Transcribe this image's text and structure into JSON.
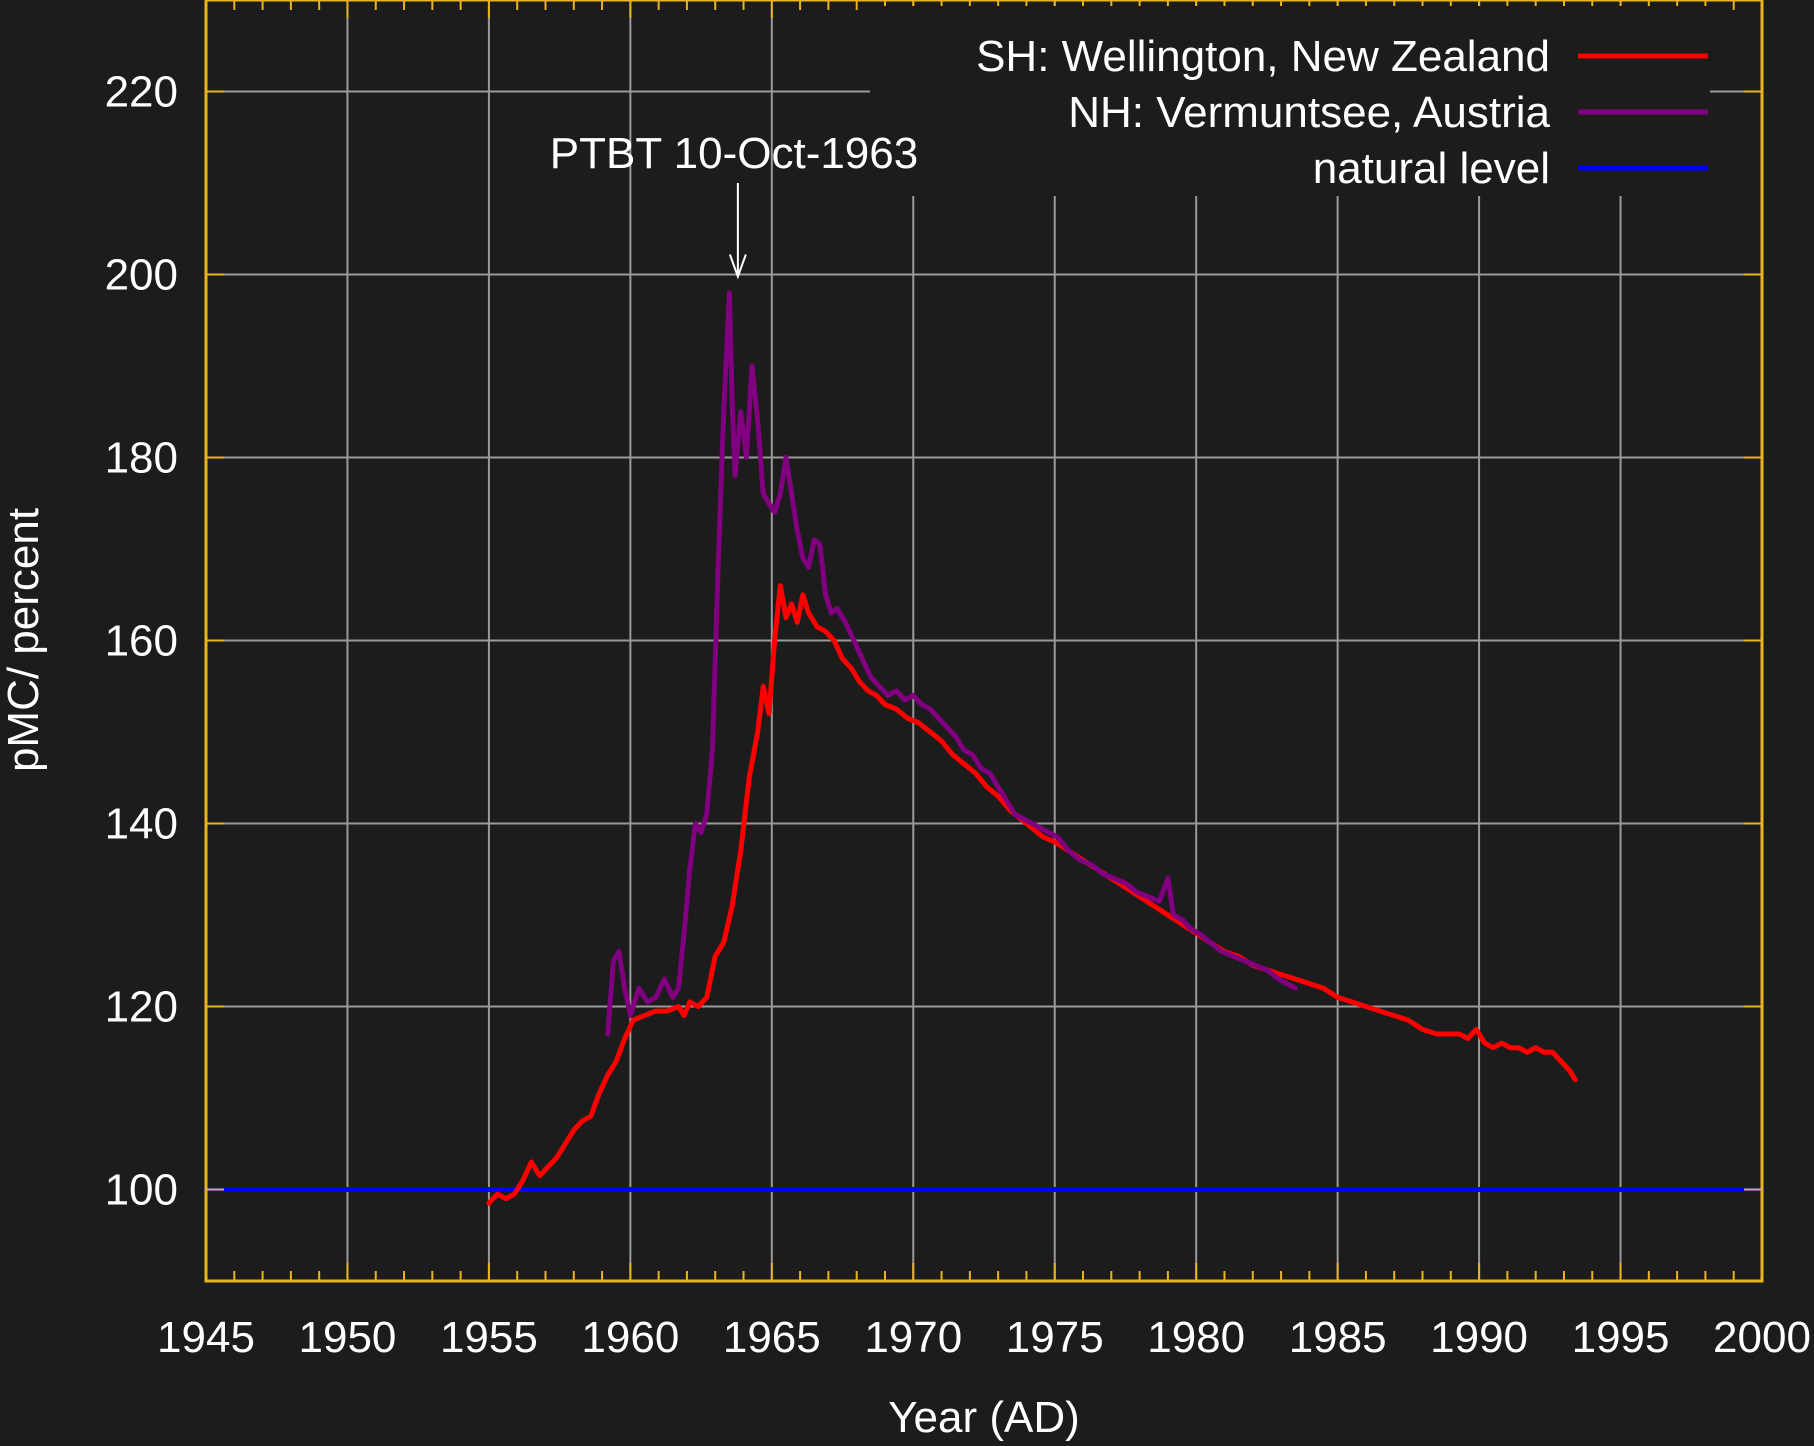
{
  "chart_data": {
    "type": "line",
    "xlabel": "Year (AD)",
    "ylabel": "pMC/ percent",
    "xlim": [
      1945,
      2000
    ],
    "ylim": [
      90,
      230
    ],
    "x_ticks": [
      1945,
      1950,
      1955,
      1960,
      1965,
      1970,
      1975,
      1980,
      1985,
      1990,
      1995,
      2000
    ],
    "y_ticks": [
      100,
      120,
      140,
      160,
      180,
      200,
      220
    ],
    "grid": true,
    "legend_position": "top-right",
    "annotation": {
      "text": "PTBT 10-Oct-1963",
      "x": 1963.8,
      "y": 200
    },
    "colors": {
      "background": "#1c1c1c",
      "frame": "#e8b421",
      "grid": "#9a9a9a",
      "text": "#ffffff"
    },
    "series": [
      {
        "name": "SH: Wellington, New Zealand",
        "color": "#ff0000",
        "x": [
          1955.0,
          1955.3,
          1955.6,
          1955.9,
          1956.2,
          1956.5,
          1956.8,
          1957.1,
          1957.4,
          1957.7,
          1958.0,
          1958.3,
          1958.6,
          1958.9,
          1959.2,
          1959.5,
          1959.8,
          1960.1,
          1960.5,
          1960.9,
          1961.3,
          1961.7,
          1961.9,
          1962.1,
          1962.4,
          1962.7,
          1963.0,
          1963.3,
          1963.6,
          1963.9,
          1964.2,
          1964.5,
          1964.7,
          1964.9,
          1965.1,
          1965.3,
          1965.5,
          1965.7,
          1965.9,
          1966.1,
          1966.3,
          1966.6,
          1966.9,
          1967.2,
          1967.5,
          1967.8,
          1968.1,
          1968.4,
          1968.7,
          1969.0,
          1969.4,
          1969.8,
          1970.2,
          1970.6,
          1971.0,
          1971.4,
          1971.8,
          1972.2,
          1972.6,
          1973.0,
          1973.4,
          1973.8,
          1974.2,
          1974.6,
          1975.0,
          1975.5,
          1976.0,
          1976.5,
          1977.0,
          1977.5,
          1978.0,
          1978.5,
          1979.0,
          1979.5,
          1980.0,
          1980.5,
          1981.0,
          1981.5,
          1982.0,
          1982.5,
          1983.0,
          1983.5,
          1984.0,
          1984.5,
          1985.0,
          1985.5,
          1986.0,
          1986.5,
          1987.0,
          1987.5,
          1988.0,
          1988.5,
          1989.0,
          1989.3,
          1989.6,
          1989.9,
          1990.2,
          1990.5,
          1990.8,
          1991.1,
          1991.4,
          1991.7,
          1992.0,
          1992.3,
          1992.6,
          1992.9,
          1993.2,
          1993.4
        ],
        "values": [
          98.5,
          99.5,
          99.0,
          99.5,
          101.0,
          103.0,
          101.5,
          102.5,
          103.5,
          105.0,
          106.5,
          107.5,
          108.0,
          110.5,
          112.5,
          114.0,
          116.5,
          118.5,
          119.0,
          119.5,
          119.5,
          120.0,
          119.0,
          120.5,
          120.0,
          121.0,
          125.5,
          127.0,
          131.0,
          137.0,
          145.0,
          150.0,
          155.0,
          152.0,
          160.0,
          166.0,
          162.5,
          164.0,
          162.0,
          165.0,
          163.0,
          161.5,
          161.0,
          160.0,
          158.0,
          157.0,
          155.5,
          154.5,
          154.0,
          153.0,
          152.5,
          151.5,
          151.0,
          150.0,
          149.0,
          147.5,
          146.5,
          145.5,
          144.0,
          143.0,
          141.5,
          140.5,
          139.5,
          138.5,
          138.0,
          137.0,
          136.0,
          135.0,
          134.0,
          133.0,
          132.0,
          131.0,
          130.0,
          129.0,
          128.0,
          127.0,
          126.0,
          125.5,
          124.5,
          124.0,
          123.5,
          123.0,
          122.5,
          122.0,
          121.0,
          120.5,
          120.0,
          119.5,
          119.0,
          118.5,
          117.5,
          117.0,
          117.0,
          117.0,
          116.5,
          117.5,
          116.0,
          115.5,
          116.0,
          115.5,
          115.5,
          115.0,
          115.5,
          115.0,
          115.0,
          114.0,
          113.0,
          112.0
        ]
      },
      {
        "name": "NH: Vermuntsee, Austria",
        "color": "#800080",
        "x": [
          1959.2,
          1959.4,
          1959.6,
          1959.8,
          1960.0,
          1960.3,
          1960.6,
          1960.9,
          1961.2,
          1961.5,
          1961.7,
          1961.9,
          1962.1,
          1962.3,
          1962.5,
          1962.7,
          1962.9,
          1963.1,
          1963.3,
          1963.5,
          1963.6,
          1963.7,
          1963.9,
          1964.1,
          1964.3,
          1964.5,
          1964.7,
          1964.9,
          1965.1,
          1965.3,
          1965.5,
          1965.7,
          1965.9,
          1966.1,
          1966.3,
          1966.5,
          1966.7,
          1966.9,
          1967.1,
          1967.3,
          1967.6,
          1967.9,
          1968.2,
          1968.5,
          1968.8,
          1969.1,
          1969.4,
          1969.7,
          1970.0,
          1970.3,
          1970.6,
          1970.9,
          1971.2,
          1971.5,
          1971.8,
          1972.1,
          1972.4,
          1972.7,
          1973.0,
          1973.3,
          1973.6,
          1973.9,
          1974.2,
          1974.5,
          1974.8,
          1975.1,
          1975.5,
          1975.9,
          1976.3,
          1976.7,
          1977.1,
          1977.5,
          1977.9,
          1978.3,
          1978.7,
          1979.0,
          1979.2,
          1979.5,
          1979.8,
          1980.1,
          1980.5,
          1980.9,
          1981.3,
          1981.7,
          1982.1,
          1982.5,
          1982.9,
          1983.2,
          1983.5
        ],
        "values": [
          117.0,
          125.0,
          126.0,
          122.0,
          119.0,
          122.0,
          120.5,
          121.0,
          123.0,
          121.0,
          122.0,
          128.0,
          135.0,
          140.0,
          139.0,
          141.0,
          148.0,
          168.0,
          185.0,
          198.0,
          186.0,
          178.0,
          185.0,
          180.0,
          190.0,
          184.0,
          176.0,
          175.0,
          174.0,
          176.0,
          180.0,
          176.0,
          172.0,
          169.0,
          168.0,
          171.0,
          170.5,
          165.0,
          163.0,
          163.5,
          162.0,
          160.0,
          158.0,
          156.0,
          155.0,
          154.0,
          154.5,
          153.5,
          154.0,
          153.0,
          152.5,
          151.5,
          150.5,
          149.5,
          148.0,
          147.5,
          146.0,
          145.5,
          144.0,
          142.5,
          141.0,
          140.5,
          140.0,
          139.5,
          139.0,
          138.5,
          137.0,
          136.0,
          135.5,
          134.5,
          134.0,
          133.5,
          132.5,
          132.0,
          131.5,
          134.0,
          130.0,
          129.5,
          128.5,
          128.0,
          127.0,
          126.0,
          125.5,
          125.0,
          124.5,
          124.0,
          123.0,
          122.5,
          122.0
        ]
      },
      {
        "name": "natural level",
        "color": "#0000ff",
        "x": [
          1945,
          2000
        ],
        "values": [
          100,
          100
        ]
      }
    ]
  }
}
